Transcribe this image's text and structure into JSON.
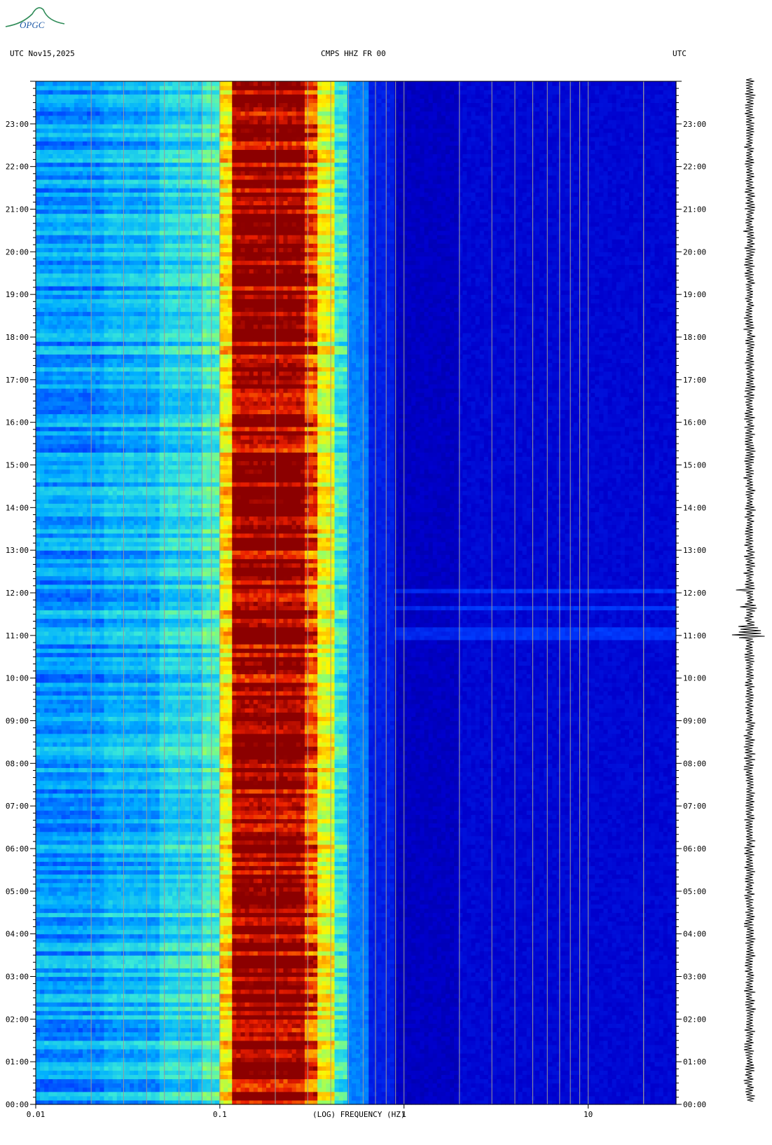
{
  "header": {
    "left": "UTC  Nov15,2025",
    "center": "CMPS HHZ FR 00",
    "right": "UTC"
  },
  "logo": {
    "text": "OPGC",
    "icon": "opgc-logo-icon"
  },
  "footnote": "",
  "chart_data": {
    "type": "heatmap",
    "title": "CMPS HHZ FR 00",
    "xlabel": "(LOG) FREQUENCY (HZ)",
    "ylabel": "UTC",
    "xscale": "log",
    "xlim": [
      0.01,
      30
    ],
    "ylim": [
      "00:00",
      "24:00"
    ],
    "x_ticks": [
      "0.01",
      "0.1",
      "1",
      "10"
    ],
    "y_ticks": [
      "00:00",
      "01:00",
      "02:00",
      "03:00",
      "04:00",
      "05:00",
      "06:00",
      "07:00",
      "08:00",
      "09:00",
      "10:00",
      "11:00",
      "12:00",
      "13:00",
      "14:00",
      "15:00",
      "16:00",
      "17:00",
      "18:00",
      "19:00",
      "20:00",
      "21:00",
      "22:00",
      "23:00"
    ],
    "colormap": "jet",
    "colors": {
      "low": "#00008b",
      "mid": "#00bfff",
      "high": "#ffff00",
      "max": "#8b0000"
    },
    "grid": true,
    "annotations": [
      {
        "time": "11:00",
        "note": "seismogram burst"
      },
      {
        "time": "12:00",
        "note": "seismogram burst"
      }
    ]
  }
}
